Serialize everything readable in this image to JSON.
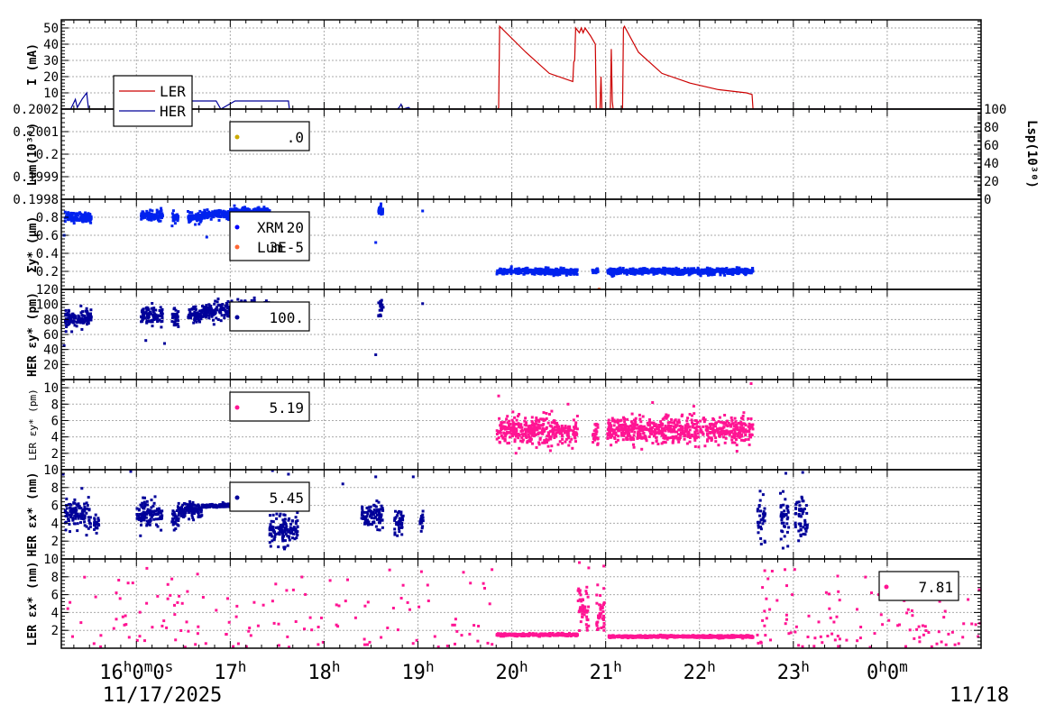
{
  "chart_data": [
    {
      "type": "line",
      "id": "current",
      "ylabel": "I (mA)",
      "ylim": [
        0,
        55
      ],
      "yticks": [
        "50",
        "40",
        "30",
        "20",
        "10"
      ],
      "ytick_values": [
        50,
        40,
        30,
        20,
        10
      ],
      "legend": {
        "placement": "bottom-left",
        "entries": [
          "LER",
          "HER"
        ]
      },
      "series": [
        {
          "name": "LER",
          "color": "#cc0000",
          "points": [
            [
              15.2,
              0
            ],
            [
              15.85,
              0
            ],
            [
              15.88,
              0
            ],
            [
              19.85,
              0
            ],
            [
              19.86,
              1
            ],
            [
              19.87,
              51
            ],
            [
              20.15,
              35
            ],
            [
              20.4,
              22
            ],
            [
              20.65,
              17
            ],
            [
              20.66,
              29
            ],
            [
              20.67,
              30
            ],
            [
              20.68,
              50
            ],
            [
              20.72,
              47
            ],
            [
              20.74,
              50
            ],
            [
              20.76,
              47
            ],
            [
              20.78,
              50
            ],
            [
              20.84,
              45
            ],
            [
              20.89,
              40
            ],
            [
              20.9,
              0
            ],
            [
              20.94,
              0
            ],
            [
              20.95,
              20
            ],
            [
              20.96,
              0
            ],
            [
              21.05,
              0
            ],
            [
              21.06,
              37
            ],
            [
              21.07,
              5
            ],
            [
              21.08,
              0
            ],
            [
              21.18,
              0
            ],
            [
              21.19,
              50
            ],
            [
              21.2,
              51
            ],
            [
              21.35,
              35
            ],
            [
              21.6,
              22
            ],
            [
              21.9,
              16
            ],
            [
              22.2,
              12
            ],
            [
              22.5,
              10
            ],
            [
              22.56,
              9
            ],
            [
              22.57,
              0
            ],
            [
              25.0,
              0
            ]
          ]
        },
        {
          "name": "HER",
          "color": "#000099",
          "points": [
            [
              15.2,
              0
            ],
            [
              15.3,
              0
            ],
            [
              15.35,
              6
            ],
            [
              15.37,
              1
            ],
            [
              15.42,
              6
            ],
            [
              15.47,
              10
            ],
            [
              15.49,
              0
            ],
            [
              16.3,
              0
            ],
            [
              16.4,
              5
            ],
            [
              16.45,
              5
            ],
            [
              16.85,
              5
            ],
            [
              16.9,
              0
            ],
            [
              17.05,
              5
            ],
            [
              17.62,
              5
            ],
            [
              17.63,
              0
            ],
            [
              18.1,
              0
            ],
            [
              18.2,
              0
            ],
            [
              18.78,
              0
            ],
            [
              18.8,
              1
            ],
            [
              18.82,
              3
            ],
            [
              18.84,
              0
            ],
            [
              18.9,
              1
            ],
            [
              18.92,
              0
            ],
            [
              25.0,
              0
            ]
          ]
        }
      ]
    },
    {
      "type": "scatter",
      "id": "luminosity",
      "ylabel": "Lum(10³⁰)",
      "y2label": "Lsp(10³⁰)",
      "ylim": [
        0.1998,
        0.2002
      ],
      "yticks": [
        "0.2002",
        "0.2001",
        "0.2",
        "0.1999",
        "0.1998"
      ],
      "ytick_values": [
        0.2002,
        0.2001,
        0.2,
        0.1999,
        0.1998
      ],
      "y2ticks": [
        "100",
        "80",
        "60",
        "40",
        "20",
        "0"
      ],
      "y2tick_values": [
        100,
        80,
        60,
        40,
        20,
        0
      ],
      "legend": {
        "placement": "top-left",
        "entries": [
          {
            "value": ".0",
            "color": "#ccaa00"
          }
        ]
      },
      "series": []
    },
    {
      "type": "scatter",
      "id": "sigma_y",
      "ylabel": "Σy* (μm)",
      "ylim": [
        0,
        1.0
      ],
      "yticks": [
        "0.8",
        "0.6",
        "0.4",
        "0.2"
      ],
      "ytick_values": [
        0.8,
        0.6,
        0.4,
        0.2
      ],
      "legend": {
        "placement": "top-left",
        "entries": [
          {
            "name": "XRM",
            "value": ".20",
            "color": "#0000ff"
          },
          {
            "name": "Lum",
            "value": "3E-5",
            "color": "#ff6633"
          }
        ]
      },
      "series": [
        {
          "name": "XRM",
          "color": "#0022ee",
          "marker": "square",
          "segments": [
            [
              15.24,
              15.52,
              0.8,
              0.05
            ],
            [
              16.05,
              16.28,
              0.82,
              0.05
            ],
            [
              16.38,
              16.45,
              0.8,
              0.05
            ],
            [
              16.55,
              16.7,
              0.79,
              0.05
            ],
            [
              16.7,
              17.0,
              0.83,
              0.04
            ],
            [
              17.0,
              17.42,
              0.86,
              0.04
            ],
            [
              18.58,
              18.63,
              0.88,
              0.05
            ],
            [
              19.84,
              20.7,
              0.2,
              0.03
            ],
            [
              20.86,
              20.92,
              0.2,
              0.03
            ],
            [
              21.02,
              22.57,
              0.2,
              0.03
            ]
          ],
          "outliers": [
            [
              15.23,
              0.6
            ],
            [
              17.55,
              0.84
            ],
            [
              18.55,
              0.52
            ],
            [
              19.05,
              0.87
            ],
            [
              16.75,
              0.58
            ]
          ]
        },
        {
          "name": "Lum",
          "color": "#ff6633",
          "marker": "dot",
          "outliers": [
            [
              20.93,
              0.0
            ]
          ]
        }
      ]
    },
    {
      "type": "scatter",
      "id": "her_eps_y",
      "ylabel": "HER εy* (pm)",
      "ylim": [
        0,
        120
      ],
      "yticks": [
        "120",
        "100",
        "80",
        "60",
        "40",
        "20"
      ],
      "ytick_values": [
        120,
        100,
        80,
        60,
        40,
        20
      ],
      "legend": {
        "placement": "top-left",
        "entries": [
          {
            "value": "100.",
            "color": "#000099"
          }
        ]
      },
      "series": [
        {
          "name": "HER",
          "color": "#000099",
          "marker": "square",
          "segments": [
            [
              15.24,
              15.52,
              80,
              12
            ],
            [
              16.05,
              16.28,
              85,
              12
            ],
            [
              16.38,
              16.45,
              82,
              12
            ],
            [
              16.55,
              16.7,
              85,
              10
            ],
            [
              16.7,
              17.0,
              90,
              10
            ],
            [
              17.0,
              17.42,
              95,
              10
            ],
            [
              18.58,
              18.63,
              97,
              12
            ]
          ],
          "outliers": [
            [
              15.23,
              45
            ],
            [
              18.55,
              33
            ],
            [
              19.05,
              101
            ],
            [
              17.55,
              96
            ],
            [
              16.3,
              48
            ],
            [
              16.1,
              52
            ]
          ]
        }
      ]
    },
    {
      "type": "scatter",
      "id": "ler_eps_y",
      "ylabel": "LER εy* (pm)",
      "ylim": [
        0,
        11
      ],
      "yticks": [
        "10",
        "8",
        "6",
        "4",
        "2"
      ],
      "ytick_values": [
        10,
        8,
        6,
        4,
        2
      ],
      "legend": {
        "placement": "top-left",
        "entries": [
          {
            "value": "5.19",
            "color": "#ff1493"
          }
        ]
      },
      "series": [
        {
          "name": "LER",
          "color": "#ff1493",
          "marker": "square",
          "segments": [
            [
              19.84,
              20.7,
              4.8,
              1.5
            ],
            [
              20.86,
              20.92,
              4.5,
              1.5
            ],
            [
              21.02,
              22.57,
              4.8,
              1.5
            ]
          ],
          "outliers": [
            [
              19.86,
              9.0
            ],
            [
              22.55,
              10.5
            ],
            [
              20.6,
              8.0
            ],
            [
              21.5,
              8.2
            ]
          ]
        }
      ]
    },
    {
      "type": "scatter",
      "id": "her_eps_x",
      "ylabel": "HER εx* (nm)",
      "ylim": [
        0,
        10
      ],
      "yticks": [
        "10",
        "8",
        "6",
        "4",
        "2"
      ],
      "ytick_values": [
        10,
        8,
        6,
        4,
        2
      ],
      "legend": {
        "placement": "top-left",
        "entries": [
          {
            "value": "5.45",
            "color": "#000099"
          }
        ]
      },
      "series": [
        {
          "name": "HER",
          "color": "#000099",
          "marker": "square",
          "segments": [
            [
              15.24,
              15.52,
              5.0,
              1.4
            ],
            [
              15.55,
              15.6,
              4.0,
              1.0
            ],
            [
              16.0,
              16.28,
              5.0,
              1.4
            ],
            [
              16.38,
              16.45,
              4.5,
              1.3
            ],
            [
              16.45,
              16.7,
              5.5,
              0.8
            ],
            [
              16.7,
              17.42,
              5.95,
              0.2
            ],
            [
              17.42,
              17.72,
              3.2,
              1.6
            ],
            [
              18.4,
              18.63,
              4.8,
              1.2
            ],
            [
              18.75,
              18.85,
              4.0,
              1.2
            ],
            [
              19.02,
              19.06,
              4.2,
              1.2
            ],
            [
              22.62,
              22.7,
              4.5,
              2.2
            ],
            [
              22.86,
              22.95,
              4.5,
              2.2
            ],
            [
              23.02,
              23.15,
              5.0,
              2.4
            ]
          ],
          "outliers": [
            [
              15.22,
              9.5
            ],
            [
              15.94,
              9.8
            ],
            [
              17.45,
              9.9
            ],
            [
              17.62,
              9.5
            ],
            [
              18.2,
              8.4
            ],
            [
              18.55,
              9.2
            ],
            [
              18.95,
              9.2
            ],
            [
              22.92,
              9.6
            ],
            [
              23.1,
              9.7
            ]
          ]
        }
      ]
    },
    {
      "type": "scatter",
      "id": "ler_eps_x",
      "ylabel": "LER εx* (nm)",
      "ylim": [
        0,
        10
      ],
      "yticks": [
        "10",
        "8",
        "6",
        "4",
        "2"
      ],
      "ytick_values": [
        10,
        8,
        6,
        4,
        2
      ],
      "legend": {
        "placement": "top-right",
        "entries": [
          {
            "value": "7.81",
            "color": "#ff1493"
          }
        ]
      },
      "series": [
        {
          "name": "LER",
          "color": "#ff1493",
          "marker": "square",
          "segments": [
            [
              19.84,
              20.7,
              1.5,
              0.12
            ],
            [
              20.7,
              20.82,
              4.5,
              2.0
            ],
            [
              20.9,
              21.0,
              4.0,
              2.0
            ],
            [
              21.02,
              22.57,
              1.3,
              0.12
            ]
          ],
          "scatter_noise": {
            "x_ranges": [
              [
                15.2,
                19.84
              ],
              [
                22.6,
                25.0
              ]
            ],
            "y_range": [
              0.1,
              9.0
            ],
            "count": 260
          },
          "outliers": [
            [
              20.72,
              9.6
            ],
            [
              20.82,
              9.0
            ],
            [
              20.98,
              9.2
            ]
          ]
        }
      ]
    }
  ],
  "x_axis": {
    "domain_hours": [
      15.2,
      25.0
    ],
    "ticks": [
      {
        "hour": 16,
        "label_main": "16",
        "label_sup": "h",
        "label_rest": "0",
        "label_sup2": "m",
        "label_rest2": "0",
        "label_sup3": "s"
      },
      {
        "hour": 17,
        "label_main": "17",
        "label_sup": "h"
      },
      {
        "hour": 18,
        "label_main": "18",
        "label_sup": "h"
      },
      {
        "hour": 19,
        "label_main": "19",
        "label_sup": "h"
      },
      {
        "hour": 20,
        "label_main": "20",
        "label_sup": "h"
      },
      {
        "hour": 21,
        "label_main": "21",
        "label_sup": "h"
      },
      {
        "hour": 22,
        "label_main": "22",
        "label_sup": "h"
      },
      {
        "hour": 23,
        "label_main": "23",
        "label_sup": "h"
      },
      {
        "hour": 24,
        "label_main": "0",
        "label_sup": "h",
        "label_rest": "0",
        "label_sup2": "m"
      }
    ],
    "date_left": "11/17/2025",
    "date_right": "11/18"
  },
  "grid": true
}
